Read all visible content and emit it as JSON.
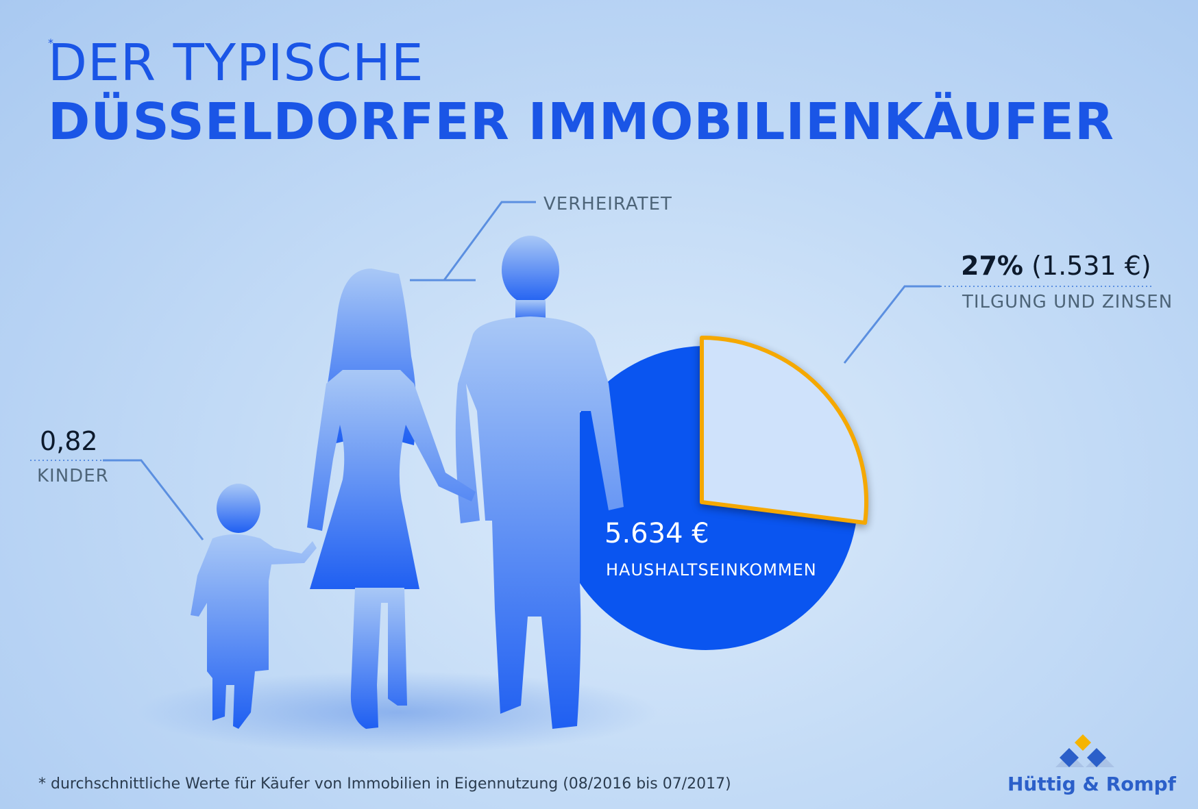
{
  "header": {
    "title_line1": "DER TYPISCHE",
    "title_line2": "DÜSSELDORFER IMMOBILIENKÄUFER",
    "asterisk": "*"
  },
  "annotations": {
    "married": {
      "label": "VERHEIRATET"
    },
    "children": {
      "value": "0,82",
      "label": "KINDER"
    },
    "payment": {
      "percent": "27%",
      "amount": "(1.531 €)",
      "label": "TILGUNG UND ZINSEN"
    },
    "income": {
      "value": "5.634 €",
      "label": "HAUSHALTSEINKOMMEN"
    }
  },
  "chart_data": {
    "type": "pie",
    "slices": [
      {
        "label": "TILGUNG UND ZINSEN",
        "value": 27
      },
      {
        "label": "HAUSHALTSEINKOMMEN",
        "value": 73
      }
    ]
  },
  "footer": {
    "footnote": "* durchschnittliche Werte für Käufer von Immobilien in Eigennutzung (08/2016 bis 07/2017)",
    "logo_text": "Hüttig & Rompf"
  },
  "colors": {
    "accent": "#1a55e6",
    "pie_main": "#0a55f0",
    "pie_slice_fill": "#cfe2fb",
    "pie_slice_border": "#f5a800",
    "leader_lines": "#5b8fe0"
  }
}
